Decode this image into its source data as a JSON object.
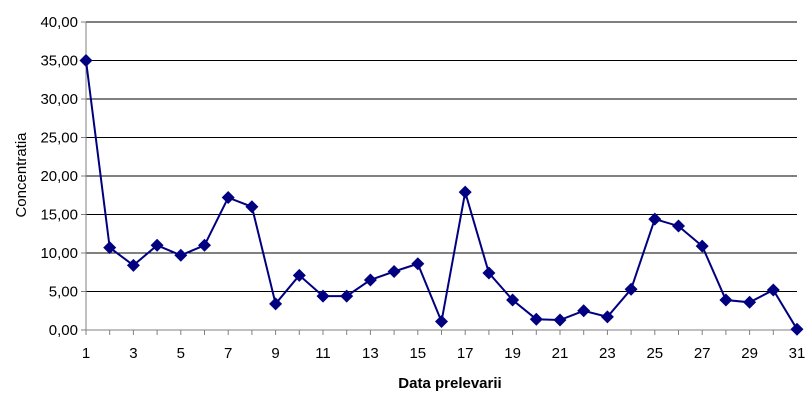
{
  "chart_data": {
    "type": "line",
    "title": "",
    "xlabel": "Data prelevarii",
    "ylabel": "Concentratia",
    "ylim": [
      0,
      40
    ],
    "yticks": [
      "0,00",
      "5,00",
      "10,00",
      "15,00",
      "20,00",
      "25,00",
      "30,00",
      "35,00",
      "40,00"
    ],
    "xtick_labels": [
      "1",
      "3",
      "5",
      "7",
      "9",
      "11",
      "13",
      "15",
      "17",
      "19",
      "21",
      "23",
      "25",
      "27",
      "29",
      "31"
    ],
    "grid": "horizontal",
    "legend": "none",
    "series_color": "#000080",
    "x": [
      1,
      2,
      3,
      4,
      5,
      6,
      7,
      8,
      9,
      10,
      11,
      12,
      13,
      14,
      15,
      16,
      17,
      18,
      19,
      20,
      21,
      22,
      23,
      24,
      25,
      26,
      27,
      28,
      29,
      30,
      31
    ],
    "values": [
      35.0,
      10.7,
      8.4,
      11.0,
      9.7,
      11.0,
      17.2,
      16.0,
      3.4,
      7.1,
      4.4,
      4.4,
      6.5,
      7.6,
      8.6,
      1.1,
      17.9,
      7.4,
      3.9,
      1.4,
      1.3,
      2.5,
      1.7,
      5.3,
      14.4,
      13.5,
      10.9,
      3.9,
      3.6,
      5.2,
      0.1
    ]
  }
}
